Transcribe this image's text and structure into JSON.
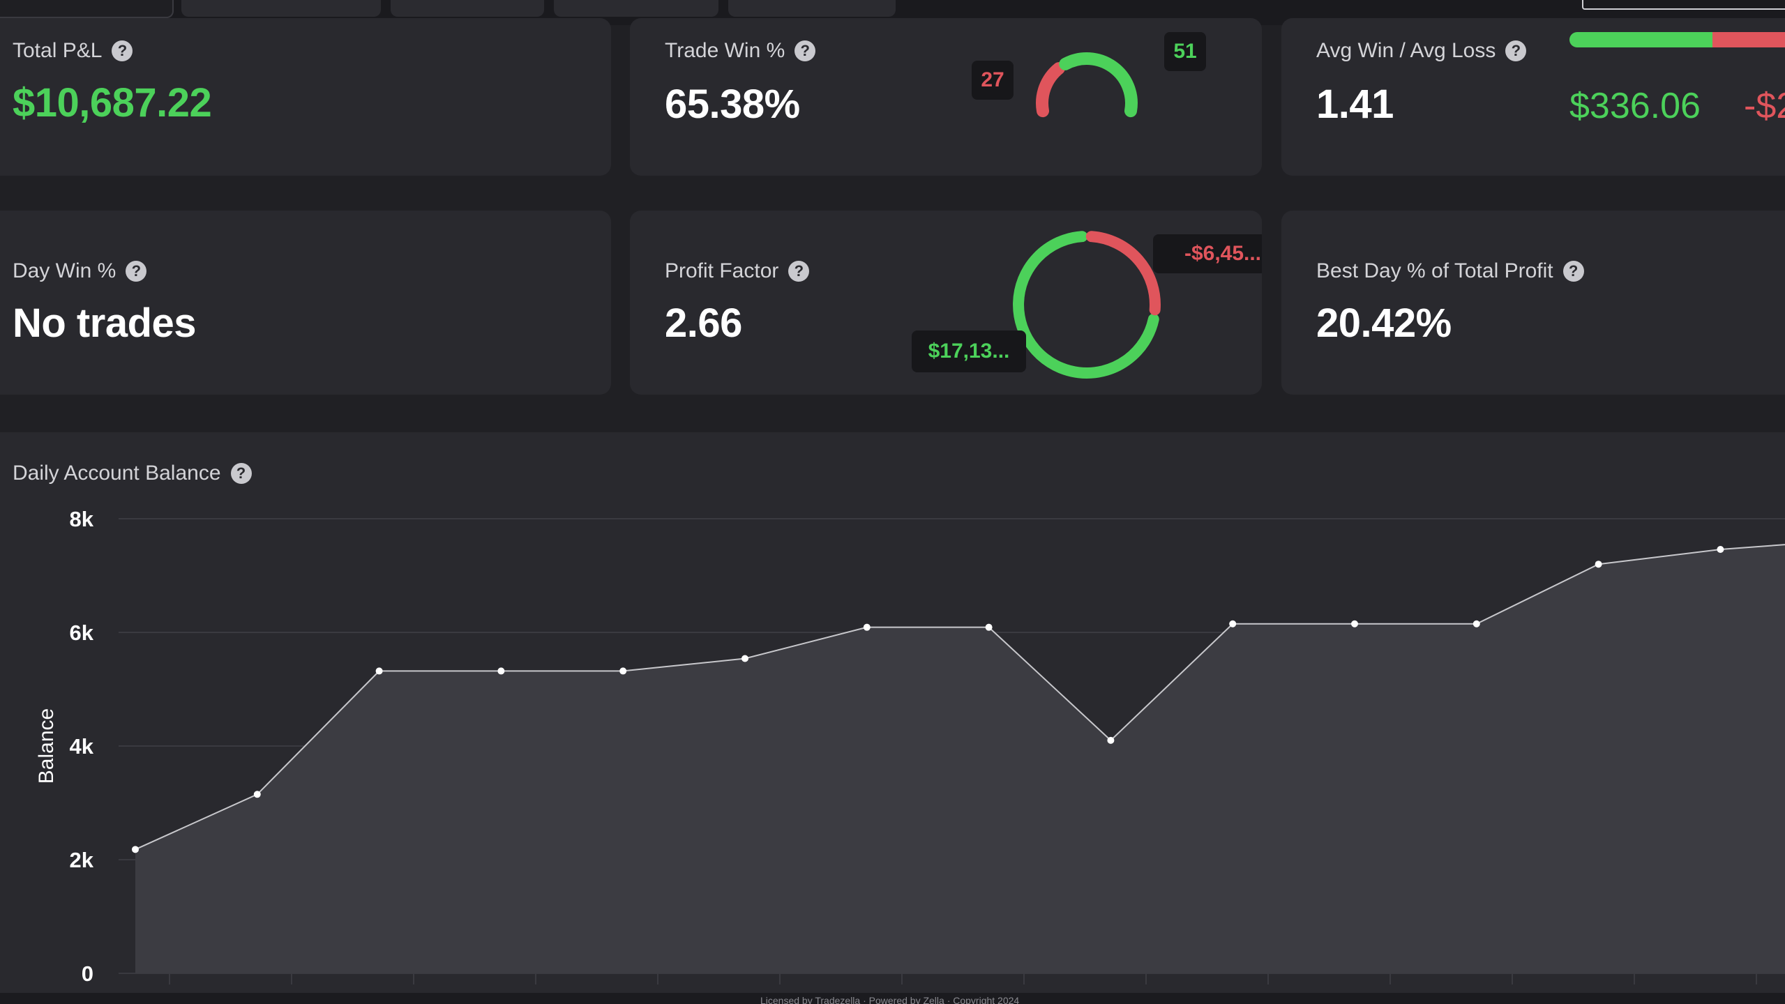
{
  "tabs": [],
  "cards": {
    "total_pnl": {
      "label": "Total P&L",
      "value": "$10,687.22"
    },
    "trade_win": {
      "label": "Trade Win %",
      "value": "65.38%",
      "wins": "51",
      "losses": "27",
      "win_fraction": 0.6538
    },
    "avg_win_loss": {
      "label": "Avg Win / Avg Loss",
      "value": "1.41",
      "avg_win": "$336.06",
      "avg_loss": "-$2",
      "win_fraction": 0.585
    },
    "day_win": {
      "label": "Day Win %",
      "value": "No trades"
    },
    "profit_factor": {
      "label": "Profit Factor",
      "value": "2.66",
      "gross_profit": "$17,13...",
      "gross_loss": "-$6,45...",
      "profit_fraction": 0.727
    },
    "best_day": {
      "label": "Best Day % of Total Profit",
      "value": "20.42%"
    }
  },
  "help_icon_glyph": "?",
  "chart": {
    "title": "Daily Account Balance",
    "footer": "Licensed by Tradezella · Powered by Zella · Copyright 2024"
  },
  "colors": {
    "positive": "#4cd15a",
    "negative": "#e0555c",
    "card_bg": "#29292e",
    "page_bg": "#202024"
  },
  "chart_data": {
    "type": "area",
    "title": "",
    "xlabel": "",
    "ylabel": "Balance",
    "ylim": [
      0,
      8000
    ],
    "yticks": [
      0,
      2000,
      4000,
      6000,
      8000
    ],
    "ytick_labels": [
      "0",
      "2k",
      "4k",
      "6k",
      "8k"
    ],
    "grid": true,
    "x": [
      1,
      2,
      3,
      4,
      5,
      6,
      7,
      8,
      9,
      10,
      11,
      12,
      13,
      14,
      15
    ],
    "series": [
      {
        "values": [
          2180,
          3150,
          5320,
          5320,
          5320,
          5540,
          6090,
          6090,
          4100,
          6150,
          6150,
          6150,
          7200,
          7460,
          7620
        ]
      }
    ]
  }
}
